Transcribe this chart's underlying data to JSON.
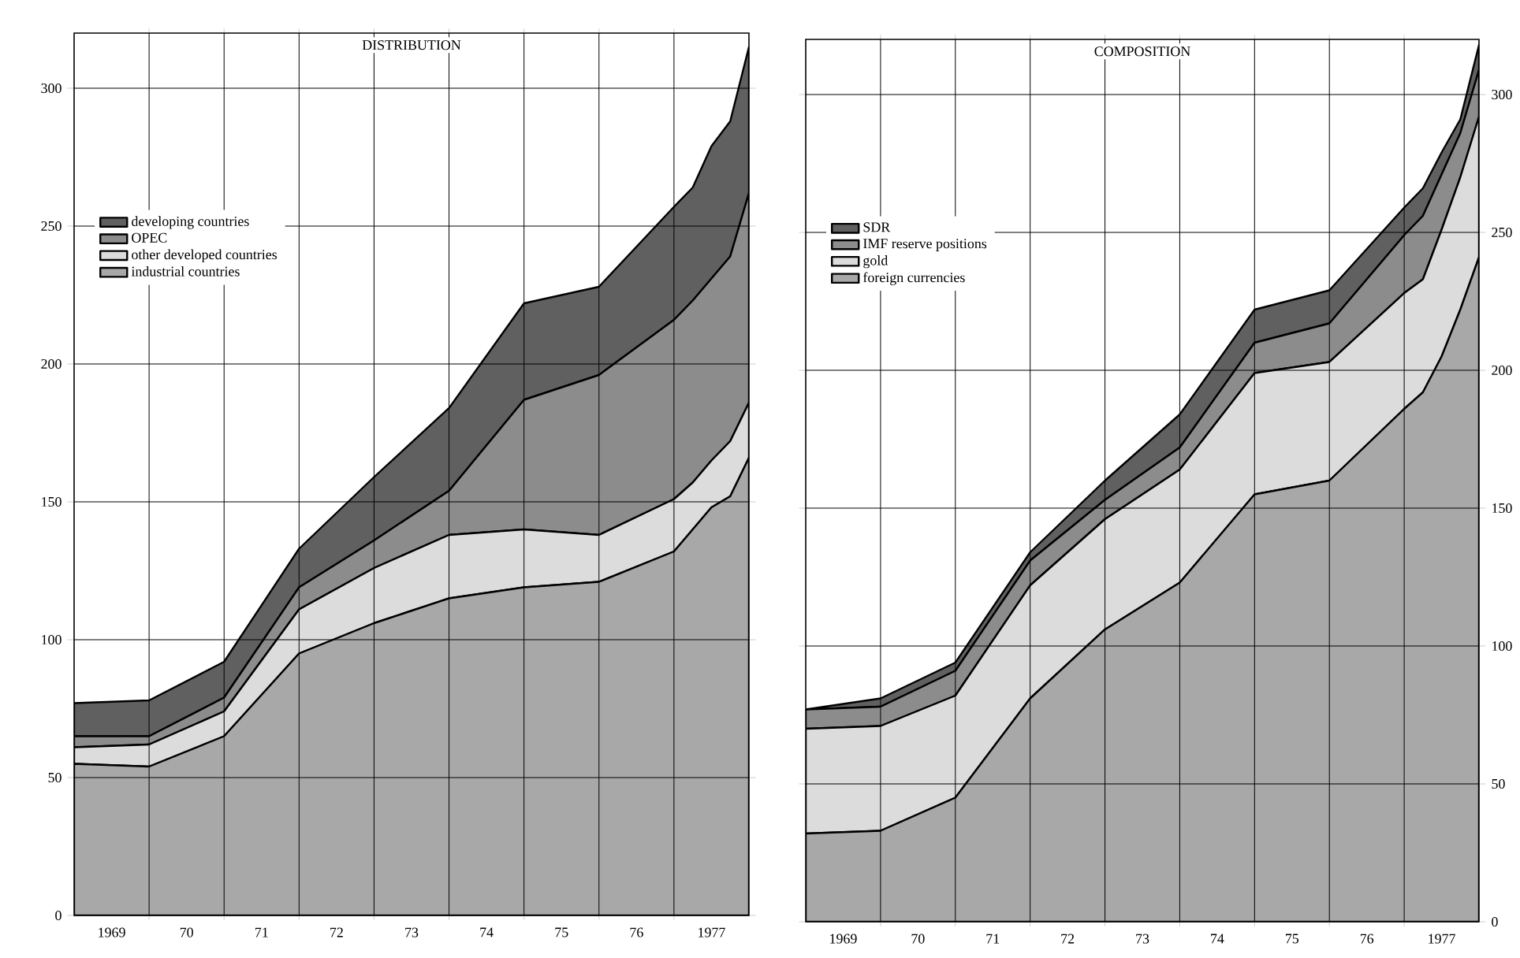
{
  "chart_data": [
    {
      "type": "area",
      "stacked": true,
      "title": "DISTRIBUTION",
      "x": [
        1968.5,
        1969.5,
        1970.5,
        1971.5,
        1972.5,
        1973.5,
        1974.5,
        1975.5,
        1976.5,
        1976.75,
        1977,
        1977.25,
        1977.5
      ],
      "xlim": [
        1968.5,
        1977.5
      ],
      "xticks": [
        {
          "value": 1969,
          "label": "1969"
        },
        {
          "value": 1970,
          "label": "70"
        },
        {
          "value": 1971,
          "label": "71"
        },
        {
          "value": 1972,
          "label": "72"
        },
        {
          "value": 1973,
          "label": "73"
        },
        {
          "value": 1974,
          "label": "74"
        },
        {
          "value": 1975,
          "label": "75"
        },
        {
          "value": 1976,
          "label": "76"
        },
        {
          "value": 1977,
          "label": "1977"
        },
        {
          "value": 1969.5,
          "label": null
        },
        {
          "value": 1970.5,
          "label": null
        },
        {
          "value": 1971.5,
          "label": null
        },
        {
          "value": 1972.5,
          "label": null
        },
        {
          "value": 1973.5,
          "label": null
        },
        {
          "value": 1974.5,
          "label": null
        },
        {
          "value": 1975.5,
          "label": null
        },
        {
          "value": 1976.5,
          "label": null
        }
      ],
      "ylim": [
        0,
        320
      ],
      "yticks": [
        0,
        50,
        100,
        150,
        200,
        250,
        300
      ],
      "grid": true,
      "legend": "top left",
      "series": [
        {
          "name": "industrial countries",
          "color": "#a8a8a8",
          "values": [
            55,
            54,
            65,
            95,
            106,
            115,
            119,
            121,
            132,
            140,
            148,
            152,
            166
          ]
        },
        {
          "name": "other developed countries",
          "color": "#dcdcdc",
          "values": [
            6,
            8,
            9,
            16,
            20,
            23,
            21,
            17,
            19,
            17,
            17,
            20,
            20
          ]
        },
        {
          "name": "OPEC",
          "color": "#8c8c8c",
          "values": [
            4,
            3,
            5,
            8,
            10,
            16,
            47,
            58,
            65,
            66,
            66,
            67,
            76
          ]
        },
        {
          "name": "developing countries",
          "color": "#606060",
          "values": [
            12,
            13,
            13,
            14,
            23,
            30,
            35,
            32,
            41,
            41,
            48,
            49,
            53
          ]
        }
      ]
    },
    {
      "type": "area",
      "stacked": true,
      "title": "COMPOSITION",
      "x": [
        1968.5,
        1969.5,
        1970.5,
        1971.5,
        1972.5,
        1973.5,
        1974.5,
        1975.5,
        1976.5,
        1976.75,
        1977,
        1977.25,
        1977.5
      ],
      "xlim": [
        1968.5,
        1977.5
      ],
      "xticks": [
        {
          "value": 1969,
          "label": "1969"
        },
        {
          "value": 1970,
          "label": "70"
        },
        {
          "value": 1971,
          "label": "71"
        },
        {
          "value": 1972,
          "label": "72"
        },
        {
          "value": 1973,
          "label": "73"
        },
        {
          "value": 1974,
          "label": "74"
        },
        {
          "value": 1975,
          "label": "75"
        },
        {
          "value": 1976,
          "label": "76"
        },
        {
          "value": 1977,
          "label": "1977"
        },
        {
          "value": 1969.5,
          "label": null
        },
        {
          "value": 1970.5,
          "label": null
        },
        {
          "value": 1971.5,
          "label": null
        },
        {
          "value": 1972.5,
          "label": null
        },
        {
          "value": 1973.5,
          "label": null
        },
        {
          "value": 1974.5,
          "label": null
        },
        {
          "value": 1975.5,
          "label": null
        },
        {
          "value": 1976.5,
          "label": null
        }
      ],
      "ylim": [
        0,
        320
      ],
      "yticks": [
        0,
        50,
        100,
        150,
        200,
        250,
        300
      ],
      "grid": true,
      "legend": "top left",
      "series": [
        {
          "name": "foreign currencies",
          "color": "#a8a8a8",
          "values": [
            32,
            33,
            45,
            81,
            106,
            123,
            155,
            160,
            186,
            192,
            205,
            222,
            241
          ]
        },
        {
          "name": "gold",
          "color": "#dcdcdc",
          "values": [
            38,
            38,
            37,
            41,
            40,
            41,
            44,
            43,
            42,
            41,
            46,
            48,
            51
          ]
        },
        {
          "name": "IMF reserve positions",
          "color": "#8c8c8c",
          "values": [
            7,
            7,
            9,
            9,
            7,
            8,
            11,
            14,
            21,
            23,
            20,
            16,
            17
          ]
        },
        {
          "name": "SDR",
          "color": "#606060",
          "values": [
            0,
            3,
            3,
            3,
            7,
            12,
            12,
            12,
            10,
            10,
            8,
            5,
            9
          ]
        }
      ]
    }
  ]
}
